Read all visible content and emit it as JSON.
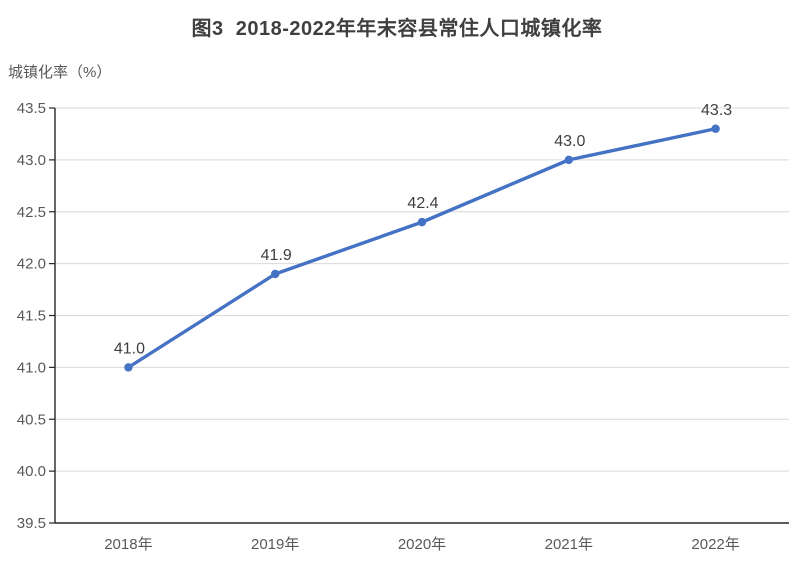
{
  "title": "图3  2018-2022年年末容县常住人口城镇化率",
  "chart_data": {
    "type": "line",
    "title": "图3  2018-2022年年末容县常住人口城镇化率",
    "ylabel": "城镇化率（%）",
    "xlabel": "",
    "categories": [
      "2018年",
      "2019年",
      "2020年",
      "2021年",
      "2022年"
    ],
    "series": [
      {
        "name": "城镇化率",
        "values": [
          41.0,
          41.9,
          42.4,
          43.0,
          43.3
        ],
        "data_labels": [
          "41.0",
          "41.9",
          "42.4",
          "43.0",
          "43.3"
        ]
      }
    ],
    "ylim": [
      39.5,
      43.5
    ],
    "ytick_step": 0.5,
    "ytick_labels": [
      "39.5",
      "40.0",
      "40.5",
      "41.0",
      "41.5",
      "42.0",
      "42.5",
      "43.0",
      "43.5"
    ],
    "grid": true,
    "legend_position": "none",
    "colors": {
      "line": "#4472C4",
      "marker": "#4472C4",
      "gridline": "#D9D9D9",
      "axis": "#262626",
      "tick_label": "#595959",
      "data_label": "#404040",
      "title": "#3f3f3f",
      "background": "#ffffff"
    }
  }
}
